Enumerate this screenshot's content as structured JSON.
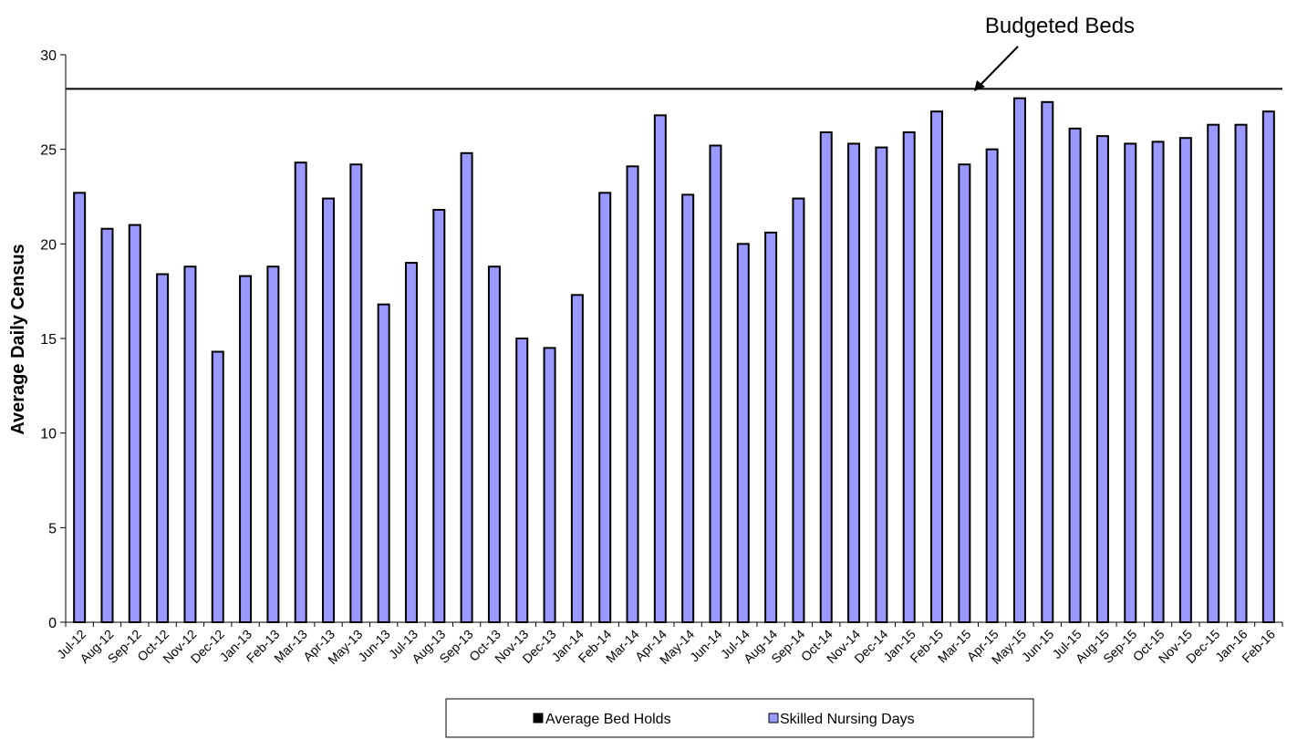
{
  "chart_data": {
    "type": "bar",
    "title": "",
    "xlabel": "",
    "ylabel": "Average Daily Census",
    "ylim": [
      0,
      30
    ],
    "yticks": [
      0,
      5,
      10,
      15,
      20,
      25,
      30
    ],
    "grid": false,
    "legend_position": "bottom",
    "categories": [
      "Jul-12",
      "Aug-12",
      "Sep-12",
      "Oct-12",
      "Nov-12",
      "Dec-12",
      "Jan-13",
      "Feb-13",
      "Mar-13",
      "Apr-13",
      "May-13",
      "Jun-13",
      "Jul-13",
      "Aug-13",
      "Sep-13",
      "Oct-13",
      "Nov-13",
      "Dec-13",
      "Jan-14",
      "Feb-14",
      "Mar-14",
      "Apr-14",
      "May-14",
      "Jun-14",
      "Jul-14",
      "Aug-14",
      "Sep-14",
      "Oct-14",
      "Nov-14",
      "Dec-14",
      "Jan-15",
      "Feb-15",
      "Mar-15",
      "Apr-15",
      "May-15",
      "Jun-15",
      "Jul-15",
      "Aug-15",
      "Sep-15",
      "Oct-15",
      "Nov-15",
      "Dec-15",
      "Jan-16",
      "Feb-16"
    ],
    "series": [
      {
        "name": "Average Bed Holds",
        "color": "#000000",
        "values": [
          0,
          0,
          0,
          0,
          0,
          0,
          0,
          0,
          0,
          0,
          0,
          0,
          0,
          0,
          0,
          0,
          0,
          0,
          0,
          0,
          0,
          0,
          0,
          0,
          0,
          0,
          0,
          0,
          0,
          0,
          0,
          0,
          0,
          0,
          0,
          0,
          0,
          0,
          0,
          0,
          0,
          0,
          0,
          0
        ]
      },
      {
        "name": "Skilled Nursing Days",
        "color": "#9999ff",
        "values": [
          22.7,
          20.8,
          21.0,
          18.4,
          18.8,
          14.3,
          18.3,
          18.8,
          24.3,
          22.4,
          24.2,
          16.8,
          19.0,
          21.8,
          24.8,
          18.8,
          15.0,
          14.5,
          17.3,
          22.7,
          24.1,
          26.8,
          22.6,
          25.2,
          20.0,
          20.6,
          22.4,
          25.9,
          25.3,
          25.1,
          25.9,
          27.0,
          24.2,
          25.0,
          27.7,
          27.5,
          26.1,
          25.7,
          25.3,
          25.4,
          25.6,
          26.3,
          26.3,
          27.0
        ]
      }
    ],
    "reference_line": {
      "label": "Budgeted Beds",
      "value": 28.2
    }
  }
}
